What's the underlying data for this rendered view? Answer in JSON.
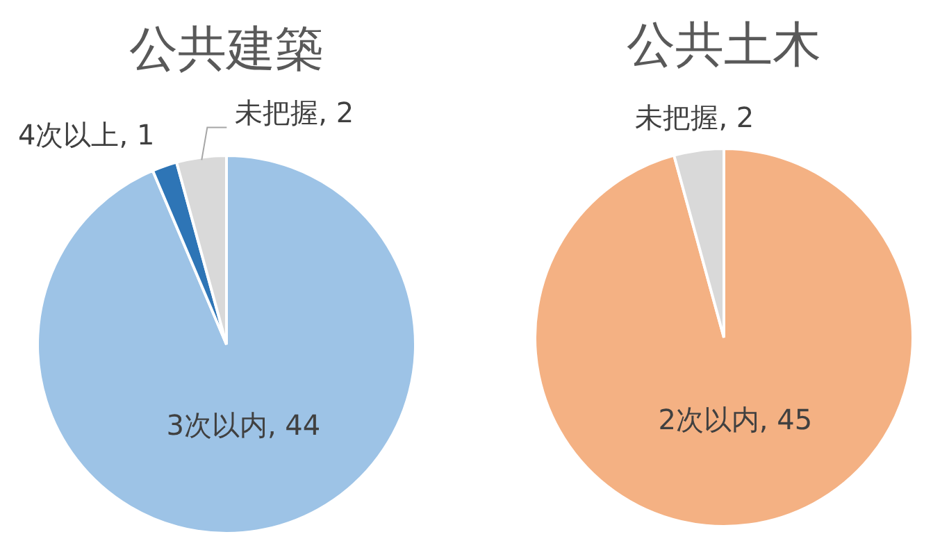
{
  "chart_data": [
    {
      "type": "pie",
      "title": "公共建築",
      "categories": [
        "3次以内",
        "4次以上",
        "未把握"
      ],
      "values": [
        44,
        1,
        2
      ],
      "value_labels": [
        ", 44",
        ", 1",
        ", 2"
      ],
      "colors": [
        "#9dc3e6",
        "#2e75b6",
        "#d9d9d9"
      ]
    },
    {
      "type": "pie",
      "title": "公共土木",
      "categories": [
        "2次以内",
        "未把握"
      ],
      "values": [
        45,
        2
      ],
      "value_labels": [
        ", 45",
        ", 2"
      ],
      "colors": [
        "#f4b183",
        "#d9d9d9"
      ]
    }
  ]
}
